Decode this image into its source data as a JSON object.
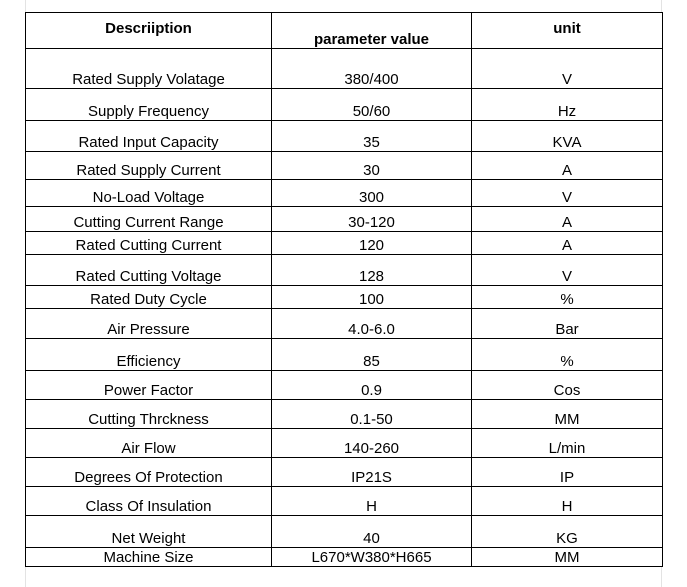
{
  "headers": [
    "Descriiption",
    "parameter value",
    "unit"
  ],
  "rows": [
    {
      "description": "Rated Supply Volatage",
      "value": "380/400",
      "unit": "V"
    },
    {
      "description": "Supply Frequency",
      "value": "50/60",
      "unit": "Hz"
    },
    {
      "description": "Rated Input Capacity",
      "value": "35",
      "unit": "KVA"
    },
    {
      "description": "Rated Supply Current",
      "value": "30",
      "unit": "A"
    },
    {
      "description": "No-Load Voltage",
      "value": "300",
      "unit": "V"
    },
    {
      "description": "Cutting Current Range",
      "value": "30-120",
      "unit": "A"
    },
    {
      "description": "Rated Cutting Current",
      "value": "120",
      "unit": "A"
    },
    {
      "description": "Rated Cutting Voltage",
      "value": "128",
      "unit": "V"
    },
    {
      "description": "Rated Duty Cycle",
      "value": "100",
      "unit": "%"
    },
    {
      "description": "Air Pressure",
      "value": "4.0-6.0",
      "unit": "Bar"
    },
    {
      "description": "Efficiency",
      "value": "85",
      "unit": "%"
    },
    {
      "description": "Power Factor",
      "value": "0.9",
      "unit": "Cos"
    },
    {
      "description": "Cutting Thrckness",
      "value": "0.1-50",
      "unit": "MM"
    },
    {
      "description": "Air Flow",
      "value": "140-260",
      "unit": "L/min"
    },
    {
      "description": "Degrees Of Protection",
      "value": "IP21S",
      "unit": "IP"
    },
    {
      "description": "Class Of Insulation",
      "value": "H",
      "unit": "H"
    },
    {
      "description": "Net Weight",
      "value": "40",
      "unit": "KG"
    },
    {
      "description": "Machine Size",
      "value": "L670*W380*H665",
      "unit": "MM"
    }
  ]
}
